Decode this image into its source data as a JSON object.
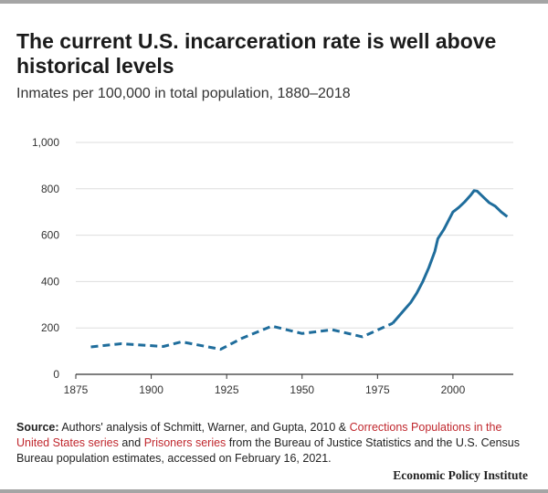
{
  "header": {
    "title": "The current U.S. incarceration rate is well above historical levels",
    "subtitle": "Inmates per 100,000 in total population, 1880–2018"
  },
  "source": {
    "label": "Source:",
    "text_1": "Authors' analysis of Schmitt, Warner, and Gupta, 2010 &",
    "link_1": "Corrections Populations in the United States series",
    "text_2": "and",
    "link_2": "Prisoners series",
    "text_3": "from the Bureau of Justice Statistics and the U.S. Census Bureau population estimates, accessed on February 16, 2021."
  },
  "footer": {
    "brand": "Economic Policy Institute"
  },
  "colors": {
    "line": "#1f6d9c",
    "axis": "#333333",
    "grid": "#dddddd",
    "link": "#c0272d"
  },
  "chart_data": {
    "type": "line",
    "title": "The current U.S. incarceration rate is well above historical levels",
    "subtitle": "Inmates per 100,000 in total population, 1880–2018",
    "xlabel": "",
    "ylabel": "",
    "xlim": [
      1875,
      2020
    ],
    "ylim": [
      0,
      1000
    ],
    "x_ticks": [
      1875,
      1900,
      1925,
      1950,
      1975,
      2000
    ],
    "x_tick_labels": [
      "1875",
      "1900",
      "1925",
      "1950",
      "1975",
      "2000"
    ],
    "y_ticks": [
      0,
      200,
      400,
      600,
      800,
      1000
    ],
    "y_tick_labels": [
      "0",
      "200",
      "400",
      "600",
      "800",
      "1,000"
    ],
    "grid": "horizontal",
    "legend": "none",
    "series": [
      {
        "style": "dashed",
        "x": [
          1880,
          1890,
          1904,
          1910,
          1923,
          1930,
          1940,
          1950,
          1960,
          1970,
          1980
        ],
        "y": [
          118,
          132,
          120,
          140,
          108,
          155,
          208,
          176,
          192,
          162,
          220
        ]
      },
      {
        "style": "solid",
        "x": [
          1980,
          1982,
          1984,
          1986,
          1988,
          1990,
          1992,
          1994,
          1995,
          1997,
          1998,
          2000,
          2001,
          2002,
          2004,
          2006,
          2007,
          2008,
          2010,
          2012,
          2014,
          2016,
          2018
        ],
        "y": [
          220,
          250,
          280,
          310,
          350,
          400,
          460,
          530,
          585,
          625,
          650,
          700,
          710,
          720,
          745,
          775,
          792,
          790,
          765,
          740,
          725,
          700,
          680
        ]
      }
    ]
  }
}
